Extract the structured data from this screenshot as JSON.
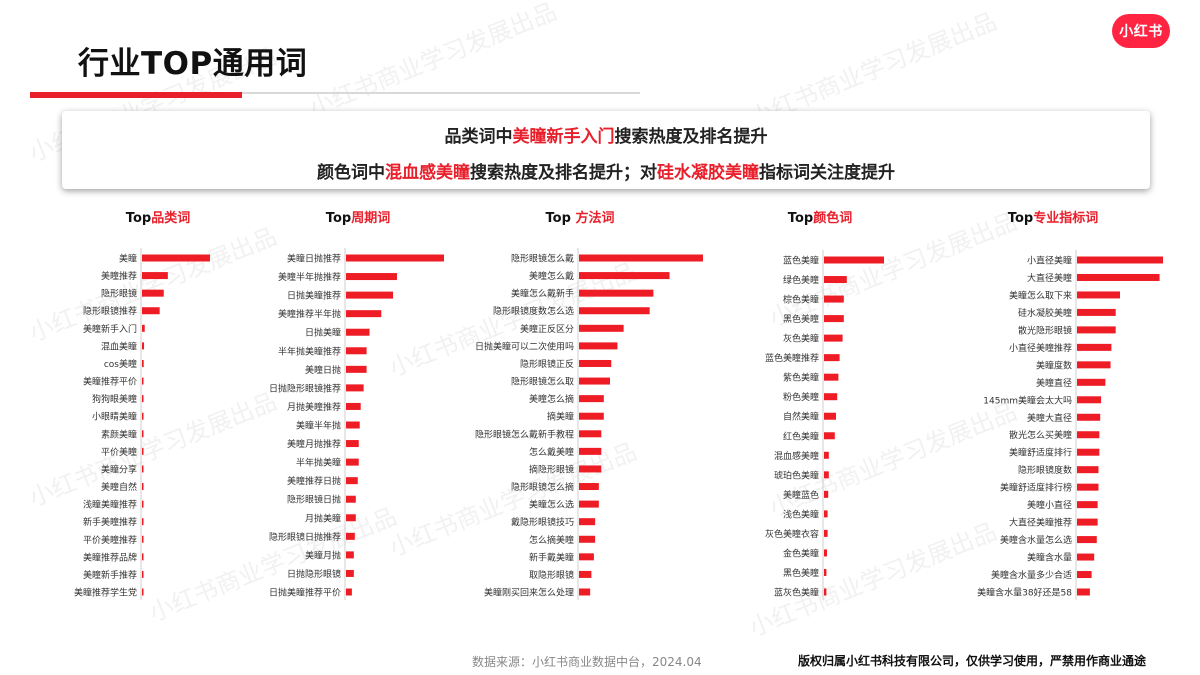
{
  "page": {
    "title": "行业TOP通用词",
    "logo": "小红书",
    "summary": {
      "line1": [
        "品类词中",
        "美瞳新手入门",
        "搜索热度及排名提升"
      ],
      "line2": [
        "颜色词中",
        "混血感美瞳",
        "搜索热度及排名提升；对",
        "硅水凝胶美瞳",
        "指标词关注度提升"
      ]
    },
    "footer_source": "数据来源：小红书商业数据中台，2024.04",
    "footer_copyright": "版权归属小红书科技有限公司，仅供学习使用，严禁用作商业通途",
    "watermark": "小红书商业学习发展出品",
    "colors": {
      "accent": "#e8202c",
      "bar": "#ee1c25",
      "axis": "#cfcfcf"
    }
  },
  "chart_data": [
    {
      "type": "bar",
      "orientation": "horizontal",
      "title": [
        "Top",
        "品类词"
      ],
      "categories": [
        "美瞳",
        "美瞳推荐",
        "隐形眼镜",
        "隐形眼镜推荐",
        "美瞳新手入门",
        "混血美瞳",
        "cos美瞳",
        "美瞳推荐平价",
        "狗狗眼美瞳",
        "小眼睛美瞳",
        "素颜美瞳",
        "平价美瞳",
        "美瞳分享",
        "美瞳自然",
        "浅瞳美瞳推荐",
        "新手美瞳推荐",
        "平价美瞳推荐",
        "美瞳推荐品牌",
        "美瞳新手推荐",
        "美瞳推荐学生党"
      ],
      "values": [
        100,
        38,
        32,
        26,
        4,
        3,
        2.5,
        2,
        1.6,
        1.4,
        1.2,
        1.1,
        1,
        1,
        0.9,
        0.8,
        0.8,
        0.7,
        0.7,
        0.6
      ]
    },
    {
      "type": "bar",
      "orientation": "horizontal",
      "title": [
        "Top",
        "周期词"
      ],
      "categories": [
        "美瞳日抛推荐",
        "美瞳半年抛推荐",
        "日抛美瞳推荐",
        "美瞳推荐半年抛",
        "日抛美瞳",
        "半年抛美瞳推荐",
        "美瞳日抛",
        "日抛隐形眼镜推荐",
        "月抛美瞳推荐",
        "美瞳半年抛",
        "美瞳月抛推荐",
        "半年抛美瞳",
        "美瞳推荐日抛",
        "隐形眼镜日抛",
        "月抛美瞳",
        "隐形眼镜日抛推荐",
        "美瞳月抛",
        "日抛隐形眼镜",
        "日抛美瞳推荐平价"
      ],
      "values": [
        100,
        52,
        48,
        36,
        24,
        21,
        21,
        18,
        15,
        14,
        13,
        13,
        12,
        10,
        10,
        9,
        8,
        8,
        6
      ]
    },
    {
      "type": "bar",
      "orientation": "horizontal",
      "title": [
        "Top ",
        "方法词"
      ],
      "categories": [
        "隐形眼镜怎么戴",
        "美瞳怎么戴",
        "美瞳怎么戴新手",
        "隐形眼镜度数怎么选",
        "美瞳正反区分",
        "日抛美瞳可以二次使用吗",
        "隐形眼镜正反",
        "隐形眼镜怎么取",
        "美瞳怎么摘",
        "摘美瞳",
        "隐形眼镜怎么戴新手教程",
        "怎么戴美瞳",
        "摘隐形眼镜",
        "隐形眼镜怎么摘",
        "美瞳怎么选",
        "戴隐形眼镜技巧",
        "怎么摘美瞳",
        "新手戴美瞳",
        "取隐形眼镜",
        "美瞳刚买回来怎么处理"
      ],
      "values": [
        100,
        73,
        60,
        57,
        36,
        31,
        26,
        25,
        20,
        20,
        18,
        18,
        18,
        16,
        16,
        13,
        13,
        12,
        10,
        9
      ]
    },
    {
      "type": "bar",
      "orientation": "horizontal",
      "title": [
        "Top",
        "颜色词"
      ],
      "categories": [
        "蓝色美瞳",
        "绿色美瞳",
        "棕色美瞳",
        "黑色美瞳",
        "灰色美瞳",
        "蓝色美瞳推荐",
        "紫色美瞳",
        "粉色美瞳",
        "自然美瞳",
        "红色美瞳",
        "混血感美瞳",
        "琥珀色美瞳",
        "美瞳蓝色",
        "浅色美瞳",
        "灰色美瞳衣容",
        "金色美瞳",
        "黑色美瞳",
        "蓝灰色美瞳"
      ],
      "values": [
        100,
        38,
        33,
        33,
        31,
        26,
        24,
        22,
        20,
        18,
        8,
        8,
        7,
        6,
        6,
        5,
        4,
        4
      ]
    },
    {
      "type": "bar",
      "orientation": "horizontal",
      "title": [
        "Top",
        "专业指标词"
      ],
      "categories": [
        "小直径美瞳",
        "大直径美瞳",
        "美瞳怎么取下来",
        "硅水凝胶美瞳",
        "散光隐形眼镜",
        "小直径美瞳推荐",
        "美瞳度数",
        "美瞳直径",
        "145mm美瞳会太大吗",
        "美瞳大直径",
        "散光怎么买美瞳",
        "美瞳舒适度排行",
        "隐形眼镜度数",
        "美瞳舒适度排行榜",
        "美瞳小直径",
        "大直径美瞳推荐",
        "美瞳含水量怎么选",
        "美瞳含水量",
        "美瞳含水量多少合适",
        "美瞳含水量38好还是58"
      ],
      "values": [
        100,
        96,
        50,
        45,
        45,
        40,
        39,
        33,
        28,
        27,
        26,
        26,
        25,
        25,
        24,
        24,
        23,
        20,
        17,
        15
      ]
    }
  ]
}
